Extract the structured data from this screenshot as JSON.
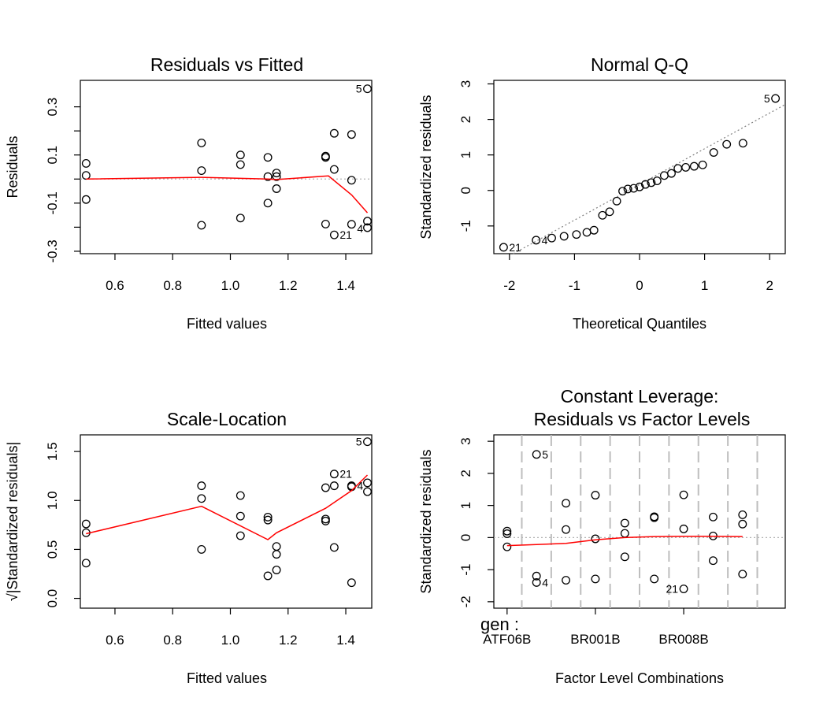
{
  "chart_data": [
    {
      "id": "rvf",
      "type": "scatter",
      "title": "Residuals vs Fitted",
      "xlabel": "Fitted values",
      "ylabel": "Residuals",
      "xlim": [
        0.48,
        1.49
      ],
      "ylim": [
        -0.31,
        0.41
      ],
      "xticks": [
        0.6,
        0.8,
        1.0,
        1.2,
        1.4
      ],
      "xtick_labels": [
        "0.6",
        "0.8",
        "1.0",
        "1.2",
        "1.4"
      ],
      "yticks": [
        -0.3,
        -0.2,
        -0.1,
        0.0,
        0.1,
        0.2,
        0.3
      ],
      "ytick_labels": [
        "-0.3",
        "",
        "-0.1",
        "",
        "0.1",
        "",
        "0.3"
      ],
      "refline": 0,
      "points": [
        [
          0.5,
          0.065
        ],
        [
          0.5,
          0.015
        ],
        [
          0.5,
          -0.085
        ],
        [
          0.9,
          0.15
        ],
        [
          0.9,
          0.035
        ],
        [
          0.9,
          -0.192
        ],
        [
          1.035,
          0.1
        ],
        [
          1.035,
          0.06
        ],
        [
          1.035,
          -0.162
        ],
        [
          1.13,
          0.09
        ],
        [
          1.13,
          0.01
        ],
        [
          1.13,
          -0.1
        ],
        [
          1.16,
          0.025
        ],
        [
          1.16,
          0.01
        ],
        [
          1.16,
          -0.04
        ],
        [
          1.33,
          0.095
        ],
        [
          1.33,
          0.09
        ],
        [
          1.33,
          -0.187
        ],
        [
          1.36,
          0.19
        ],
        [
          1.36,
          0.04
        ],
        [
          1.36,
          -0.232
        ],
        [
          1.42,
          0.185
        ],
        [
          1.42,
          -0.005
        ],
        [
          1.42,
          -0.188
        ],
        [
          1.475,
          0.375
        ],
        [
          1.475,
          -0.175
        ],
        [
          1.475,
          -0.202
        ]
      ],
      "smooth": [
        [
          0.5,
          0.0
        ],
        [
          0.9,
          0.007
        ],
        [
          1.13,
          0.0
        ],
        [
          1.16,
          -0.002
        ],
        [
          1.34,
          0.013
        ],
        [
          1.42,
          -0.066
        ],
        [
          1.475,
          -0.14
        ]
      ],
      "labels": [
        {
          "text": "5",
          "x": 1.475,
          "y": 0.375,
          "side": "left"
        },
        {
          "text": "21",
          "x": 1.36,
          "y": -0.232,
          "side": "right"
        },
        {
          "text": "4",
          "x": 1.42,
          "y": -0.205,
          "side": "right"
        }
      ]
    },
    {
      "id": "qq",
      "type": "scatter",
      "title": "Normal Q-Q",
      "xlabel": "Theoretical Quantiles",
      "ylabel": "Standardized residuals",
      "xlim": [
        -2.24,
        2.24
      ],
      "ylim": [
        -1.78,
        3.1
      ],
      "xticks": [
        -2,
        -1,
        0,
        1,
        2
      ],
      "xtick_labels": [
        "-2",
        "-1",
        "0",
        "1",
        "2"
      ],
      "yticks": [
        -1,
        0,
        1,
        2,
        3
      ],
      "ytick_labels": [
        "-1",
        "0",
        "1",
        "2",
        "3"
      ],
      "refline_coeffs": [
        0.17,
        1.005
      ],
      "points": [
        [
          -2.09,
          -1.6
        ],
        [
          -1.59,
          -1.4
        ],
        [
          -1.35,
          -1.34
        ],
        [
          -1.16,
          -1.29
        ],
        [
          -0.97,
          -1.24
        ],
        [
          -0.81,
          -1.18
        ],
        [
          -0.7,
          -1.12
        ],
        [
          -0.57,
          -0.7
        ],
        [
          -0.46,
          -0.6
        ],
        [
          -0.35,
          -0.3
        ],
        [
          -0.26,
          -0.02
        ],
        [
          -0.18,
          0.04
        ],
        [
          -0.09,
          0.06
        ],
        [
          0.0,
          0.1
        ],
        [
          0.09,
          0.17
        ],
        [
          0.18,
          0.22
        ],
        [
          0.27,
          0.27
        ],
        [
          0.38,
          0.42
        ],
        [
          0.49,
          0.48
        ],
        [
          0.59,
          0.62
        ],
        [
          0.71,
          0.65
        ],
        [
          0.84,
          0.68
        ],
        [
          0.97,
          0.72
        ],
        [
          1.14,
          1.07
        ],
        [
          1.34,
          1.3
        ],
        [
          1.59,
          1.33
        ],
        [
          2.09,
          2.59
        ]
      ],
      "labels": [
        {
          "text": "5",
          "x": 2.09,
          "y": 2.59,
          "side": "left"
        },
        {
          "text": "21",
          "x": -2.09,
          "y": -1.6,
          "side": "right"
        },
        {
          "text": "4",
          "x": -1.59,
          "y": -1.4,
          "side": "right"
        }
      ]
    },
    {
      "id": "sl",
      "type": "scatter",
      "title": "Scale-Location",
      "xlabel": "Fitted values",
      "ylabel": "√|Standardized residuals|",
      "xlim": [
        0.48,
        1.49
      ],
      "ylim": [
        -0.1,
        1.67
      ],
      "xticks": [
        0.6,
        0.8,
        1.0,
        1.2,
        1.4
      ],
      "xtick_labels": [
        "0.6",
        "0.8",
        "1.0",
        "1.2",
        "1.4"
      ],
      "yticks": [
        0.0,
        0.5,
        1.0,
        1.5
      ],
      "ytick_labels": [
        "0.0",
        "0.5",
        "1.0",
        "1.5"
      ],
      "points": [
        [
          0.5,
          0.76
        ],
        [
          0.5,
          0.67
        ],
        [
          0.5,
          0.36
        ],
        [
          0.9,
          1.15
        ],
        [
          0.9,
          1.02
        ],
        [
          0.9,
          0.5
        ],
        [
          1.035,
          1.05
        ],
        [
          1.035,
          0.84
        ],
        [
          1.035,
          0.64
        ],
        [
          1.13,
          0.83
        ],
        [
          1.13,
          0.8
        ],
        [
          1.13,
          0.23
        ],
        [
          1.16,
          0.53
        ],
        [
          1.16,
          0.45
        ],
        [
          1.16,
          0.29
        ],
        [
          1.33,
          1.13
        ],
        [
          1.33,
          0.81
        ],
        [
          1.33,
          0.79
        ],
        [
          1.36,
          1.27
        ],
        [
          1.36,
          1.15
        ],
        [
          1.36,
          0.52
        ],
        [
          1.42,
          1.15
        ],
        [
          1.42,
          1.14
        ],
        [
          1.42,
          0.16
        ],
        [
          1.475,
          1.6
        ],
        [
          1.475,
          1.18
        ],
        [
          1.475,
          1.09
        ]
      ],
      "smooth": [
        [
          0.5,
          0.66
        ],
        [
          0.9,
          0.94
        ],
        [
          1.13,
          0.6
        ],
        [
          1.16,
          0.67
        ],
        [
          1.33,
          0.92
        ],
        [
          1.42,
          1.1
        ],
        [
          1.475,
          1.26
        ]
      ],
      "labels": [
        {
          "text": "5",
          "x": 1.475,
          "y": 1.6,
          "side": "left"
        },
        {
          "text": "21",
          "x": 1.36,
          "y": 1.27,
          "side": "right"
        },
        {
          "text": "4",
          "x": 1.42,
          "y": 1.15,
          "side": "right"
        }
      ]
    },
    {
      "id": "cl",
      "type": "scatter",
      "title": "Constant Leverage:",
      "subtitle": "Residuals vs Factor Levels",
      "xlabel": "Factor Level Combinations",
      "ylabel": "Standardized residuals",
      "factor_label": "gen :",
      "xlim": [
        0.55,
        10.45
      ],
      "ylim": [
        -2.2,
        3.2
      ],
      "xticks": [
        1,
        4,
        7
      ],
      "xtick_labels": [
        "ATF06B",
        "BR001B",
        "BR008B"
      ],
      "yticks": [
        -2,
        -1,
        0,
        1,
        2,
        3
      ],
      "ytick_labels": [
        "-2",
        "-1",
        "0",
        "1",
        "2",
        "3"
      ],
      "refline": 0,
      "level_boundaries": [
        0.5,
        1.5,
        2.5,
        3.5,
        4.5,
        5.5,
        6.5,
        7.5,
        8.5,
        9.5,
        10.5
      ],
      "points": [
        [
          1,
          0.2
        ],
        [
          1,
          0.12
        ],
        [
          1,
          -0.29
        ],
        [
          2,
          2.59
        ],
        [
          2,
          -1.2
        ],
        [
          2,
          -1.4
        ],
        [
          3,
          1.07
        ],
        [
          3,
          0.25
        ],
        [
          3,
          -1.33
        ],
        [
          4,
          1.32
        ],
        [
          4,
          -0.04
        ],
        [
          4,
          -1.29
        ],
        [
          5,
          0.45
        ],
        [
          5,
          0.13
        ],
        [
          5,
          -0.6
        ],
        [
          6,
          0.65
        ],
        [
          6,
          0.62
        ],
        [
          6,
          -1.29
        ],
        [
          7,
          1.33
        ],
        [
          7,
          0.27
        ],
        [
          7,
          -1.6
        ],
        [
          8,
          0.64
        ],
        [
          8,
          0.05
        ],
        [
          8,
          -0.72
        ],
        [
          9,
          0.71
        ],
        [
          9,
          0.42
        ],
        [
          9,
          -1.14
        ]
      ],
      "smooth": [
        [
          1,
          -0.25
        ],
        [
          2,
          -0.22
        ],
        [
          3,
          -0.18
        ],
        [
          4,
          -0.07
        ],
        [
          5,
          0.0
        ],
        [
          6,
          0.03
        ],
        [
          7,
          0.04
        ],
        [
          8,
          0.04
        ],
        [
          9,
          0.03
        ]
      ],
      "labels": [
        {
          "text": "5",
          "x": 2,
          "y": 2.59,
          "side": "right"
        },
        {
          "text": "4",
          "x": 2,
          "y": -1.4,
          "side": "right"
        },
        {
          "text": "21",
          "x": 7,
          "y": -1.6,
          "side": "left"
        }
      ]
    }
  ]
}
